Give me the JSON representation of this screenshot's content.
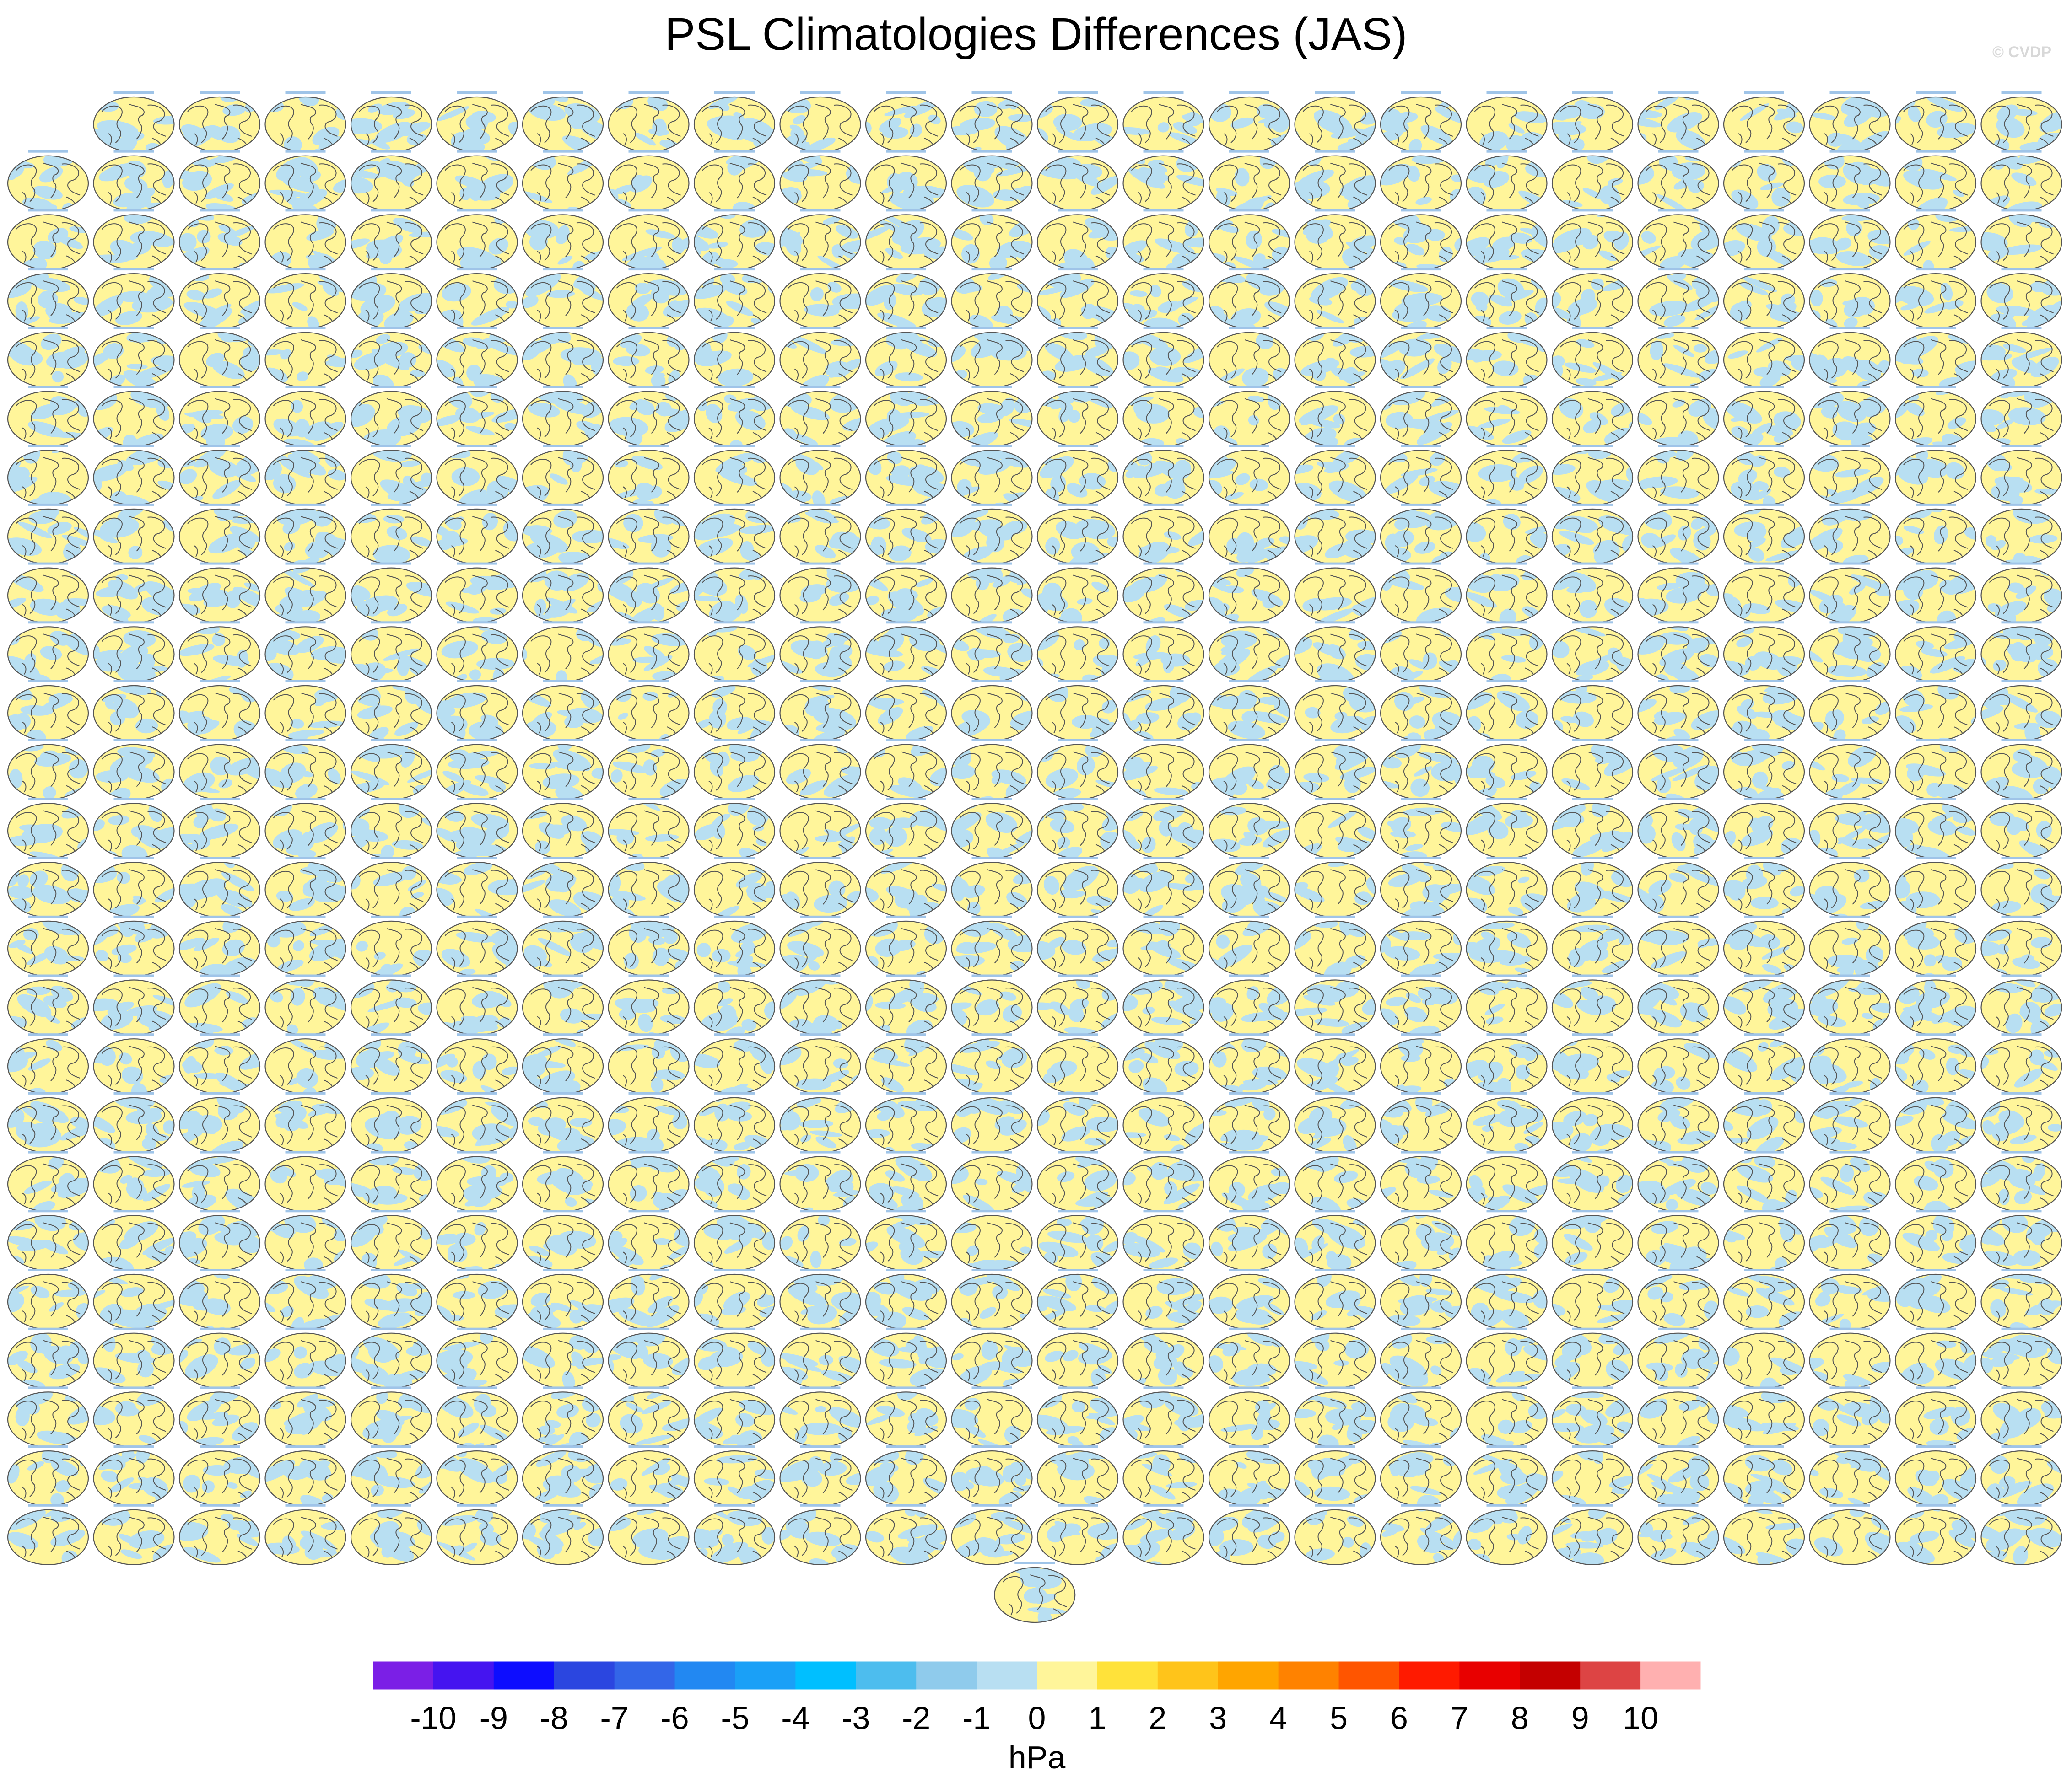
{
  "header": {
    "title": "PSL Climatologies Differences (JAS)",
    "copyright": "© CVDP"
  },
  "colorbar": {
    "unit_label": "hPa",
    "tick_labels": [
      "-10",
      "-9",
      "-8",
      "-7",
      "-6",
      "-5",
      "-4",
      "-3",
      "-2",
      "-1",
      "0",
      "1",
      "2",
      "3",
      "4",
      "5",
      "6",
      "7",
      "8",
      "9",
      "10"
    ],
    "colors": [
      "#7b1fe6",
      "#4514f0",
      "#0d0dff",
      "#2b46e0",
      "#3366e8",
      "#2288f2",
      "#1aa0f7",
      "#00bfff",
      "#4dbdee",
      "#8fcbec",
      "#b8dff2",
      "#fff59a",
      "#ffe23a",
      "#ffc41a",
      "#ffa500",
      "#ff8200",
      "#ff5500",
      "#ff1a00",
      "#e80000",
      "#c40000",
      "#dd4444",
      "#ffb0b0"
    ]
  },
  "chart_data": {
    "type": "heatmap",
    "title": "PSL Climatologies Differences (JAS)",
    "description_units": "hPa",
    "colorbar_range": [
      -10,
      10
    ],
    "colorbar_step": 1,
    "grid": {
      "rows": 26,
      "columns": 24,
      "first_row_panels": 23,
      "last_row_panels": 1,
      "total_panels": 600
    },
    "panel_colors": {
      "positive": "#fff59a",
      "negative": "#b8dff2",
      "continent_outline": "#555555"
    }
  }
}
